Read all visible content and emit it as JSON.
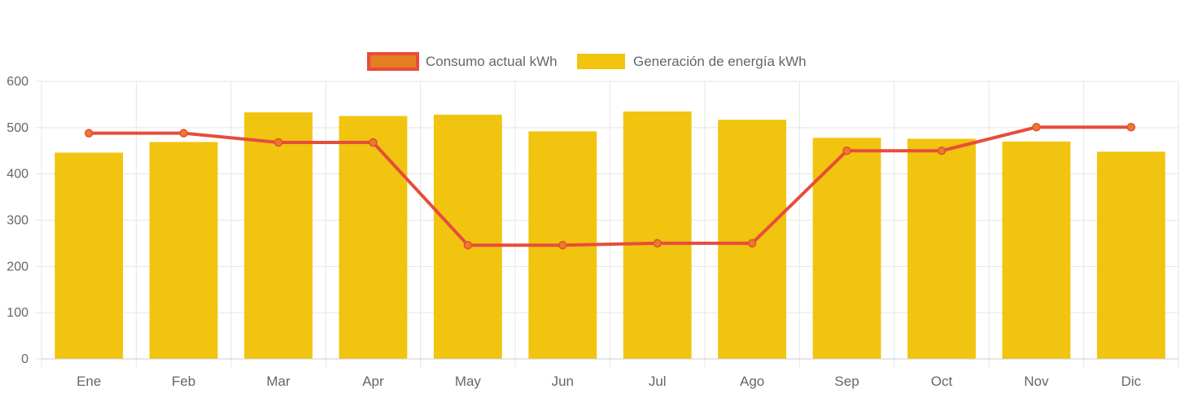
{
  "chart_data": {
    "type": "bar",
    "categories": [
      "Ene",
      "Feb",
      "Mar",
      "Apr",
      "May",
      "Jun",
      "Jul",
      "Ago",
      "Sep",
      "Oct",
      "Nov",
      "Dic"
    ],
    "series": [
      {
        "name": "Consumo actual kWh",
        "type": "line",
        "color": "#e74c3c",
        "point_color": "#e67e22",
        "values": [
          488,
          488,
          468,
          468,
          246,
          246,
          250,
          250,
          450,
          450,
          501,
          501
        ]
      },
      {
        "name": "Generación de energía kWh",
        "type": "bar",
        "color": "#f1c40f",
        "values": [
          446,
          469,
          533,
          525,
          528,
          492,
          535,
          517,
          478,
          476,
          470,
          448
        ]
      }
    ],
    "yticks": [
      0,
      100,
      200,
      300,
      400,
      500,
      600
    ],
    "ylim": [
      0,
      600
    ],
    "grid": true,
    "legend_position": "top-center"
  }
}
